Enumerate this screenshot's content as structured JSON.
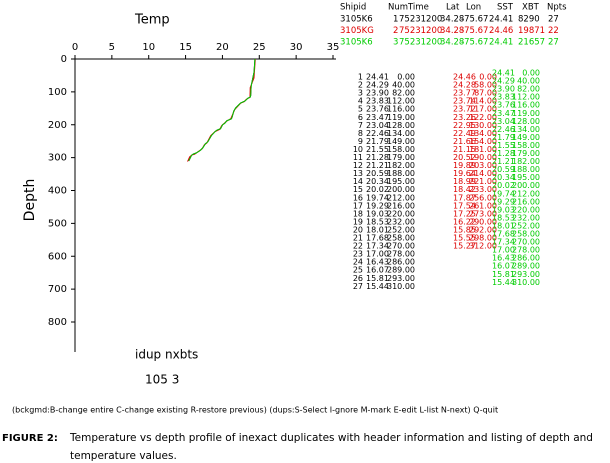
{
  "chart_data": {
    "type": "line",
    "title": "Temp",
    "y_label": "Depth",
    "xlim": [
      0,
      35
    ],
    "xticks": [
      0,
      5,
      10,
      15,
      20,
      25,
      30,
      35
    ],
    "ylim": [
      0,
      800
    ],
    "yticks": [
      0,
      100,
      200,
      300,
      400,
      500,
      600,
      700,
      800
    ],
    "y_inverted": true,
    "series": [
      {
        "color": "#000000",
        "index": [
          "1",
          "2",
          "3",
          "4",
          "5",
          "6",
          "7",
          "8",
          "9",
          "10",
          "11",
          "12",
          "13",
          "14",
          "15",
          "16",
          "17",
          "18",
          "19",
          "20",
          "21",
          "22",
          "23",
          "24",
          "25",
          "26",
          "27"
        ],
        "temp": [
          "24.41",
          "24.29",
          "23.90",
          "23.83",
          "23.76",
          "23.47",
          "23.04",
          "22.46",
          "21.79",
          "21.55",
          "21.28",
          "21.21",
          "20.59",
          "20.34",
          "20.02",
          "19.74",
          "19.29",
          "19.03",
          "18.53",
          "18.01",
          "17.68",
          "17.34",
          "17.00",
          "16.43",
          "16.07",
          "15.81",
          "15.44"
        ],
        "depth": [
          "0.00",
          "40.00",
          "82.00",
          "112.00",
          "116.00",
          "119.00",
          "128.00",
          "134.00",
          "149.00",
          "158.00",
          "179.00",
          "182.00",
          "188.00",
          "195.00",
          "200.00",
          "212.00",
          "216.00",
          "220.00",
          "232.00",
          "252.00",
          "258.00",
          "270.00",
          "278.00",
          "286.00",
          "289.00",
          "293.00",
          "310.00"
        ]
      },
      {
        "color": "#dd0000",
        "temp": [
          "24.46",
          "24.28",
          "23.77",
          "23.74",
          "23.72",
          "23.26",
          "22.95",
          "22.49",
          "21.66",
          "21.15",
          "20.52",
          "19.89",
          "19.64",
          "18.99",
          "18.42",
          "17.87",
          "17.54",
          "17.25",
          "16.22",
          "15.85",
          "15.55",
          "15.27"
        ],
        "depth": [
          "0.00",
          "58.00",
          "87.00",
          "114.00",
          "117.00",
          "122.00",
          "130.00",
          "134.00",
          "154.00",
          "181.00",
          "190.00",
          "203.00",
          "214.00",
          "221.00",
          "233.00",
          "256.00",
          "261.00",
          "273.00",
          "290.00",
          "292.00",
          "298.00",
          "312.00"
        ]
      },
      {
        "color": "#00cc00",
        "temp": [
          "24.41",
          "24.29",
          "23.90",
          "23.83",
          "23.76",
          "23.47",
          "23.04",
          "22.46",
          "21.79",
          "21.55",
          "21.28",
          "21.21",
          "20.59",
          "20.34",
          "20.02",
          "19.74",
          "19.29",
          "19.03",
          "18.53",
          "18.01",
          "17.68",
          "17.34",
          "17.00",
          "16.43",
          "16.07",
          "15.81",
          "15.44"
        ],
        "depth": [
          "0.00",
          "40.00",
          "82.00",
          "112.00",
          "116.00",
          "119.00",
          "128.00",
          "134.00",
          "149.00",
          "158.00",
          "179.00",
          "182.00",
          "188.00",
          "195.00",
          "200.00",
          "212.00",
          "216.00",
          "220.00",
          "232.00",
          "252.00",
          "258.00",
          "270.00",
          "278.00",
          "286.00",
          "289.00",
          "293.00",
          "310.00"
        ]
      }
    ]
  },
  "header": {
    "columns": [
      "Shipid",
      "Num",
      "Time",
      "Lat",
      "Lon",
      "SST",
      "XBT",
      "Npts"
    ],
    "rows": [
      [
        "3105K6",
        "1",
        "75231200",
        "34.28",
        "-75.67",
        "24.41",
        "8290",
        "27"
      ],
      [
        "3105KG",
        "2",
        "75231200",
        "34.28",
        "-75.67",
        "24.46",
        "19871",
        "22"
      ],
      [
        "3105K6",
        "3",
        "75231200",
        "34.28",
        "-75.67",
        "24.41",
        "21657",
        "27"
      ]
    ]
  },
  "status": {
    "labels": "idup nxbts",
    "values": "105    3"
  },
  "instructions": "(bckgmd:B-change entire C-change existing R-restore previous) (dups:S-Select I-gnore M-mark E-edit L-list N-next) Q-quit",
  "caption": {
    "label": "FIGURE 2:",
    "lines": [
      "Temperature vs depth profile of inexact duplicates with header information and listing of depth and",
      "temperature values."
    ]
  }
}
